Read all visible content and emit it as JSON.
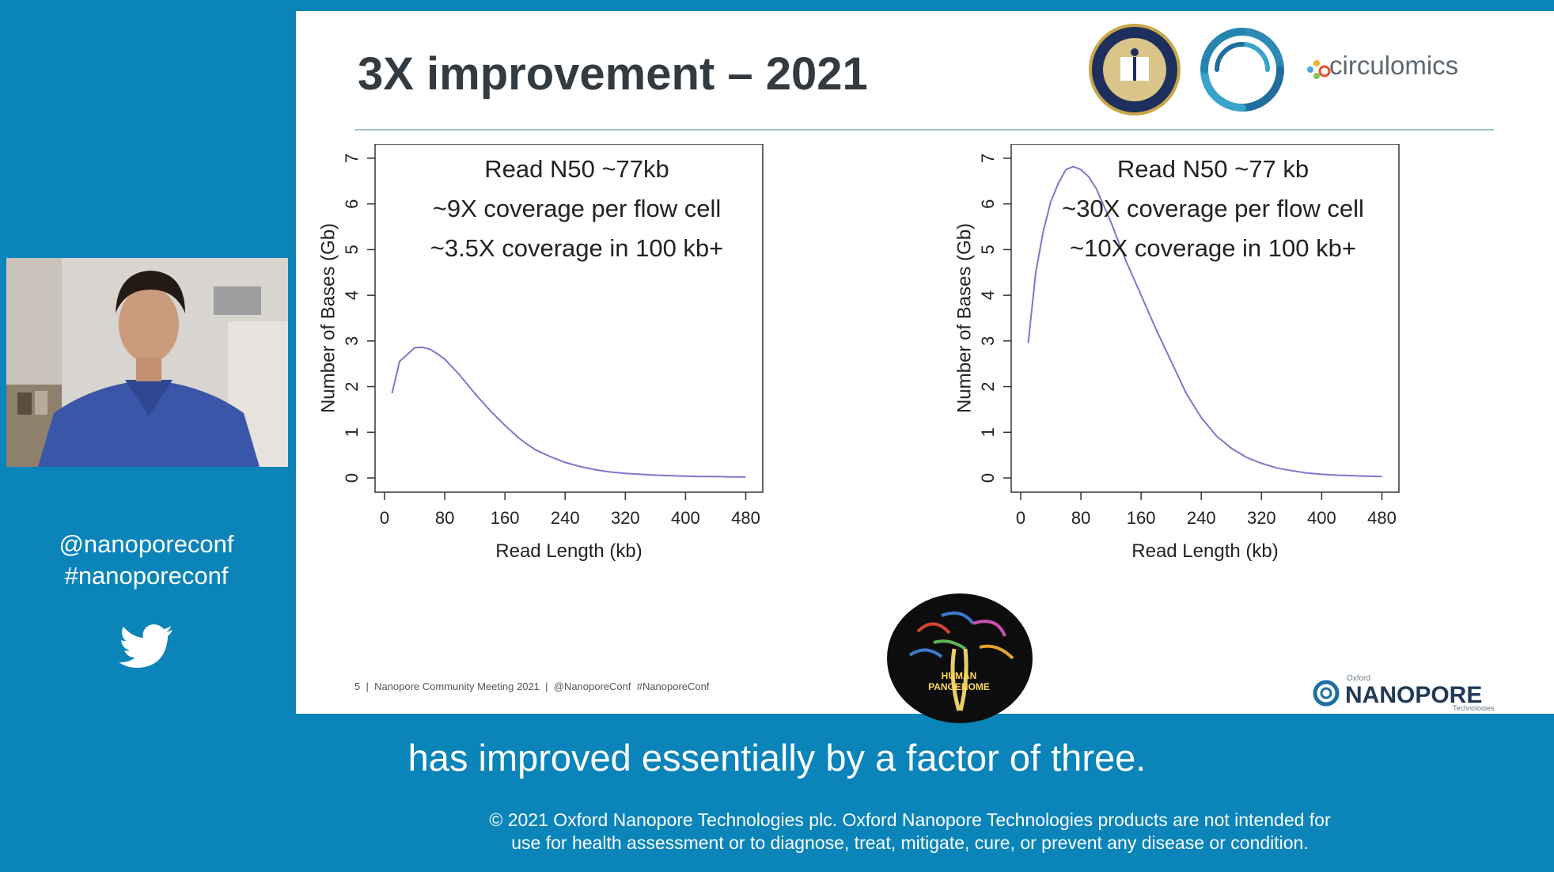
{
  "sidebar": {
    "handle": "@nanoporeconf",
    "hashtag": "#nanoporeconf",
    "social_icon": "twitter-bird-icon"
  },
  "slide": {
    "title": "3X improvement – 2021",
    "logos": {
      "circulomics_text": "circulomics",
      "ont_small": "Oxford",
      "ont_main": "NANOPORE",
      "ont_sub": "Technologies",
      "pangenome_line1": "HUMAN",
      "pangenome_line2": "PANGENOME"
    },
    "footer": {
      "page": "5",
      "meeting": "Nanopore Community Meeting 2021",
      "handles": "@NanoporeConf  #NanoporeConf"
    }
  },
  "chart_data": [
    {
      "type": "line",
      "xlabel": "Read Length (kb)",
      "ylabel": "Number of Bases (Gb)",
      "xlim": [
        0,
        490
      ],
      "ylim": [
        0,
        7
      ],
      "xticks": [
        0,
        80,
        160,
        240,
        320,
        400,
        480
      ],
      "yticks": [
        0,
        1,
        2,
        3,
        4,
        5,
        6,
        7
      ],
      "annotations": [
        "Read N50 ~77kb",
        "~9X coverage per flow cell",
        "~3.5X coverage in 100 kb+"
      ],
      "color": "#7b79c9",
      "x": [
        10,
        20,
        30,
        40,
        50,
        60,
        70,
        80,
        100,
        120,
        140,
        160,
        180,
        200,
        220,
        240,
        260,
        280,
        300,
        320,
        340,
        360,
        380,
        400,
        420,
        440,
        460,
        480
      ],
      "y": [
        1.85,
        2.55,
        2.7,
        2.85,
        2.86,
        2.82,
        2.72,
        2.6,
        2.25,
        1.85,
        1.48,
        1.15,
        0.85,
        0.62,
        0.47,
        0.34,
        0.25,
        0.18,
        0.13,
        0.1,
        0.08,
        0.06,
        0.05,
        0.04,
        0.03,
        0.03,
        0.02,
        0.02
      ]
    },
    {
      "type": "line",
      "xlabel": "Read Length (kb)",
      "ylabel": "Number of Bases (Gb)",
      "xlim": [
        0,
        490
      ],
      "ylim": [
        0,
        7
      ],
      "xticks": [
        0,
        80,
        160,
        240,
        320,
        400,
        480
      ],
      "yticks": [
        0,
        1,
        2,
        3,
        4,
        5,
        6,
        7
      ],
      "annotations": [
        "Read N50 ~77 kb",
        "~30X coverage per flow cell",
        "~10X coverage in 100 kb+"
      ],
      "color": "#7b79c9",
      "x": [
        10,
        20,
        30,
        40,
        50,
        60,
        70,
        80,
        90,
        100,
        120,
        140,
        160,
        180,
        200,
        220,
        240,
        260,
        280,
        300,
        320,
        340,
        360,
        380,
        400,
        420,
        440,
        460,
        480
      ],
      "y": [
        2.95,
        4.5,
        5.4,
        6.05,
        6.45,
        6.75,
        6.82,
        6.75,
        6.6,
        6.35,
        5.6,
        4.75,
        4.0,
        3.25,
        2.55,
        1.85,
        1.32,
        0.92,
        0.65,
        0.45,
        0.32,
        0.22,
        0.16,
        0.11,
        0.08,
        0.06,
        0.05,
        0.04,
        0.03
      ]
    }
  ],
  "caption": "has improved essentially by a factor of three.",
  "copyright": {
    "line1": "© 2021 Oxford Nanopore Technologies plc. Oxford Nanopore Technologies products are not intended for",
    "line2": "use for health assessment or to diagnose, treat, mitigate, cure, or prevent any disease or condition."
  },
  "colors": {
    "brand_blue": "#0a84b9",
    "title_text": "#333a40",
    "line": "#7b79c9",
    "rule": "#9fc3d6"
  }
}
